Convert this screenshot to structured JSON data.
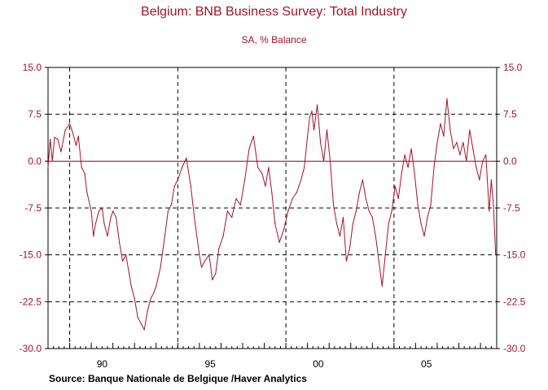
{
  "chart_data": {
    "type": "line",
    "title": "Belgium: BNB Business Survey: Total Industry",
    "subtitle": "SA, % Balance",
    "source": "Source:  Banque Nationale de Belgique /Haver Analytics",
    "xlabel": "",
    "ylabel": "",
    "ylim": [
      -30,
      15
    ],
    "xlim": [
      1988.0,
      2008.75
    ],
    "y_ticks": [
      "15.0",
      "7.5",
      "0.0",
      "-7.5",
      "-15.0",
      "-22.5",
      "-30.0"
    ],
    "y_tick_values": [
      15,
      7.5,
      0,
      -7.5,
      -15,
      -22.5,
      -30
    ],
    "x_tick_labels": [
      "90",
      "95",
      "00",
      "05"
    ],
    "x_tick_values": [
      1990.5,
      1995.5,
      2000.5,
      2005.5
    ],
    "vertical_markers": [
      1989.0,
      1994.0,
      1999.0,
      2004.0
    ],
    "horizontal_gridlines": [
      7.5,
      -7.5,
      -15,
      -22.5
    ],
    "series": [
      {
        "name": "Total Industry",
        "color": "#a4122a",
        "x": [
          1988.0,
          1988.1,
          1988.2,
          1988.3,
          1988.45,
          1988.6,
          1988.8,
          1989.0,
          1989.15,
          1989.3,
          1989.4,
          1989.55,
          1989.7,
          1989.8,
          1990.0,
          1990.1,
          1990.2,
          1990.35,
          1990.5,
          1990.6,
          1990.75,
          1990.9,
          1991.0,
          1991.15,
          1991.3,
          1991.45,
          1991.6,
          1991.75,
          1991.85,
          1992.0,
          1992.15,
          1992.3,
          1992.45,
          1992.6,
          1992.75,
          1992.9,
          1993.0,
          1993.2,
          1993.4,
          1993.55,
          1993.7,
          1993.85,
          1994.0,
          1994.2,
          1994.4,
          1994.6,
          1994.8,
          1995.0,
          1995.1,
          1995.25,
          1995.45,
          1995.6,
          1995.75,
          1995.9,
          1996.1,
          1996.3,
          1996.5,
          1996.7,
          1996.9,
          1997.1,
          1997.3,
          1997.5,
          1997.7,
          1997.9,
          1998.05,
          1998.2,
          1998.35,
          1998.5,
          1998.7,
          1998.9,
          1999.1,
          1999.3,
          1999.5,
          1999.7,
          1999.85,
          2000.0,
          2000.1,
          2000.2,
          2000.3,
          2000.45,
          2000.6,
          2000.75,
          2000.9,
          2001.05,
          2001.2,
          2001.35,
          2001.5,
          2001.65,
          2001.8,
          2001.95,
          2002.1,
          2002.25,
          2002.4,
          2002.55,
          2002.7,
          2002.85,
          2003.0,
          2003.15,
          2003.3,
          2003.45,
          2003.6,
          2003.75,
          2003.9,
          2004.05,
          2004.2,
          2004.35,
          2004.5,
          2004.65,
          2004.8,
          2004.95,
          2005.1,
          2005.25,
          2005.4,
          2005.55,
          2005.7,
          2005.85,
          2006.0,
          2006.15,
          2006.3,
          2006.45,
          2006.6,
          2006.75,
          2006.9,
          2007.05,
          2007.2,
          2007.35,
          2007.5,
          2007.65,
          2007.8,
          2007.95,
          2008.1,
          2008.25,
          2008.4,
          2008.5,
          2008.6,
          2008.7
        ],
        "values": [
          -1,
          3.5,
          0,
          3.8,
          3.5,
          1.5,
          5,
          6,
          4.5,
          2.5,
          4,
          -1,
          -2,
          -5,
          -8,
          -12,
          -10,
          -8,
          -7.5,
          -10,
          -12,
          -9,
          -8,
          -9,
          -13,
          -16,
          -15,
          -18,
          -20,
          -22,
          -25,
          -26,
          -27,
          -24,
          -22,
          -21,
          -20,
          -17,
          -12,
          -8,
          -7,
          -4,
          -3,
          -1,
          0.5,
          -4,
          -10,
          -15,
          -17,
          -16,
          -15,
          -19,
          -18,
          -14,
          -12,
          -8,
          -9,
          -6,
          -7,
          -3,
          2,
          4,
          -1,
          -2,
          -4,
          -1,
          -5,
          -10,
          -13,
          -11,
          -8,
          -6,
          -5,
          -3,
          -1,
          4,
          7,
          8,
          5,
          9,
          3,
          0,
          5,
          0,
          -7,
          -10,
          -12,
          -9,
          -16,
          -14,
          -10,
          -8,
          -5,
          -3,
          -6,
          -8,
          -9,
          -12,
          -16,
          -20,
          -15,
          -10,
          -8,
          -4,
          -6,
          -2,
          1,
          -1,
          2,
          -2,
          -7,
          -10,
          -12,
          -9,
          -7,
          -1,
          3,
          6,
          4,
          10,
          5,
          2,
          3,
          1,
          3,
          0,
          5,
          2,
          -1,
          -3,
          0,
          1,
          -8,
          -3,
          -7,
          -15
        ]
      }
    ]
  },
  "labels": {
    "title": "Belgium: BNB Business Survey: Total Industry",
    "subtitle": "SA, % Balance",
    "source": "Source:  Banque Nationale de Belgique /Haver Analytics"
  }
}
